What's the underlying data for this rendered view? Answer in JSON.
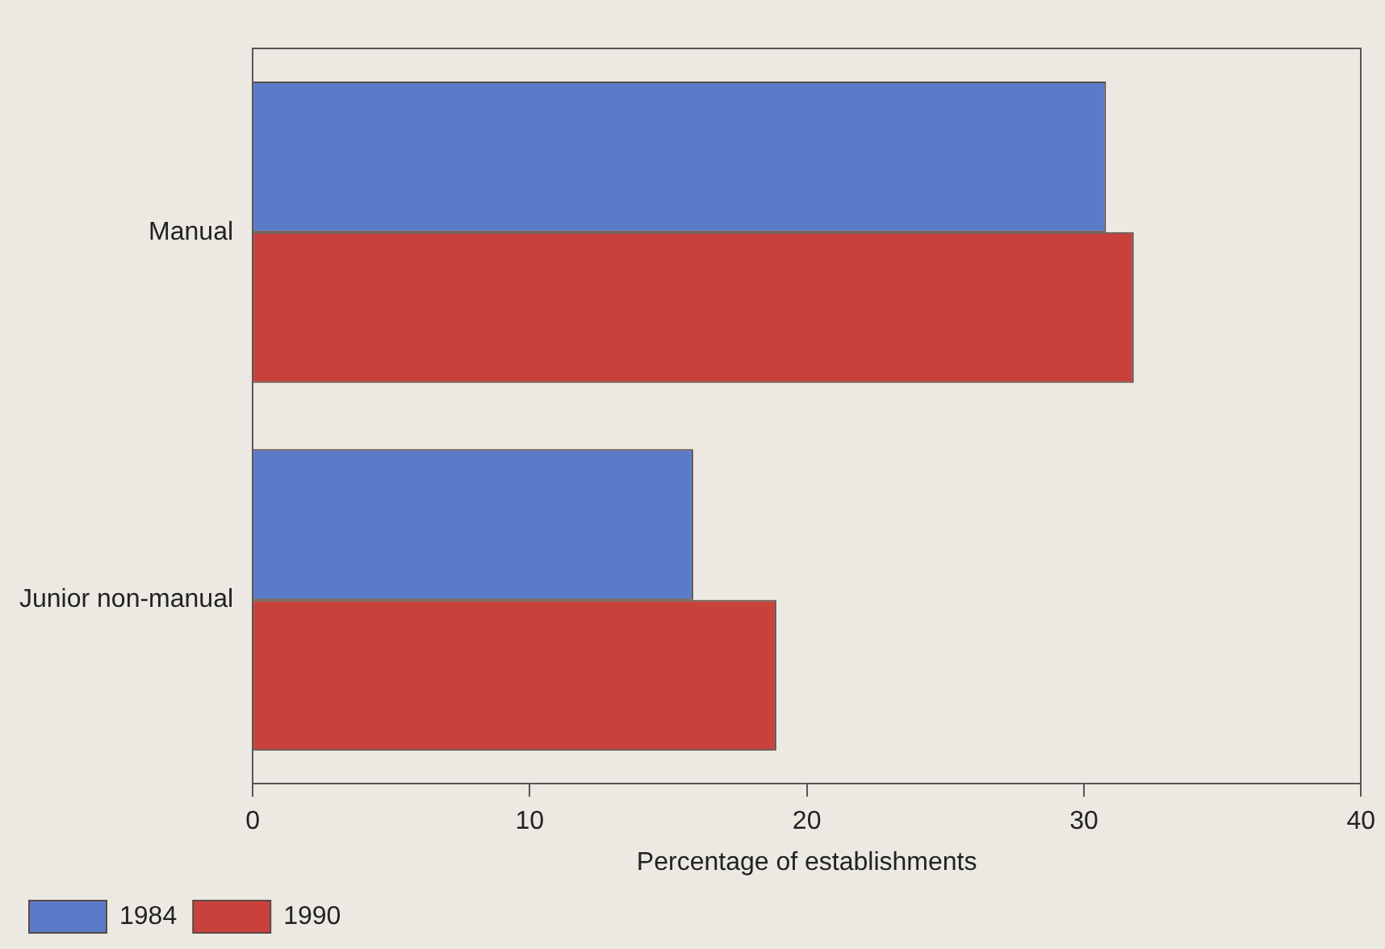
{
  "chart_data": {
    "type": "bar",
    "orientation": "horizontal",
    "categories": [
      "Manual",
      "Junior non-manual"
    ],
    "series": [
      {
        "name": "1984",
        "color": "#5b7bc9",
        "values": [
          30.8,
          15.9
        ]
      },
      {
        "name": "1990",
        "color": "#c8413a",
        "values": [
          31.8,
          18.9
        ]
      }
    ],
    "xlabel": "Percentage of establishments",
    "xlim": [
      0,
      40
    ],
    "xticks": [
      0,
      10,
      20,
      30,
      40
    ],
    "grid": false,
    "legend": "bottom"
  }
}
